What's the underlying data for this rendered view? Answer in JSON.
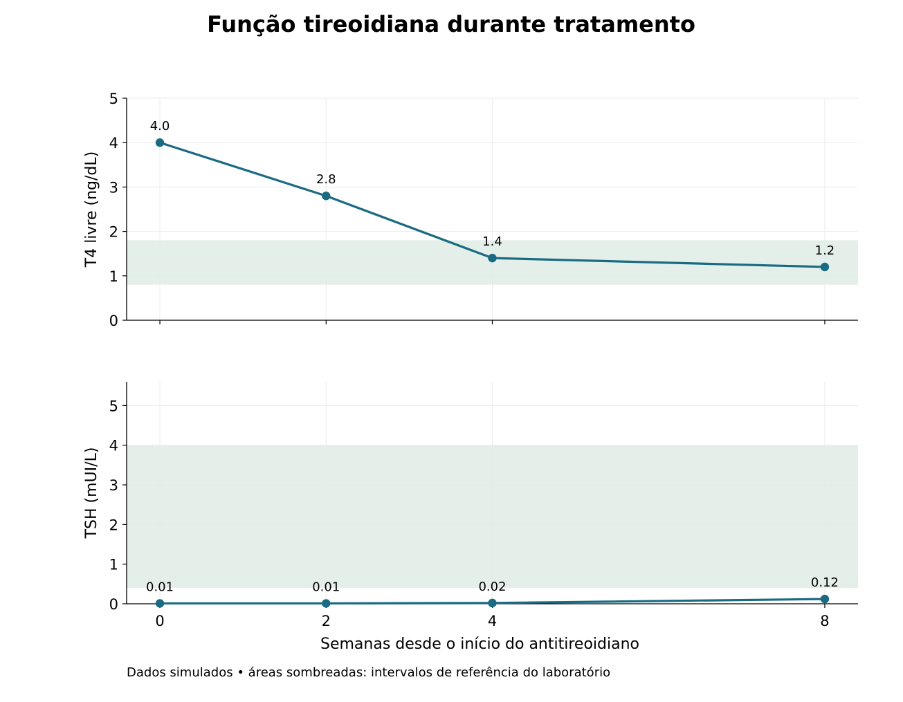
{
  "title": "Função tireoidiana durante tratamento",
  "footnote": "Dados simulados • áreas sombreadas: intervalos de referência do laboratório",
  "colors": {
    "line": "#1a6b82",
    "band": "#dfece6",
    "grid": "#ebebeb",
    "axis": "#000000"
  },
  "chart_data": [
    {
      "type": "line",
      "panel": "top",
      "x": [
        0,
        2,
        4,
        8
      ],
      "values": [
        4.0,
        2.8,
        1.4,
        1.2
      ],
      "data_labels": [
        "4.0",
        "2.8",
        "1.4",
        "1.2"
      ],
      "xlabel": "",
      "ylabel": "T4 livre (ng/dL)",
      "xlim": [
        -0.4,
        8.4
      ],
      "ylim": [
        0,
        5
      ],
      "yticks": [
        0,
        1,
        2,
        3,
        4,
        5
      ],
      "xticks": [
        0,
        2,
        4,
        8
      ],
      "show_xtick_labels": false,
      "reference_range": [
        0.8,
        1.8
      ],
      "grid": true
    },
    {
      "type": "line",
      "panel": "bottom",
      "x": [
        0,
        2,
        4,
        8
      ],
      "values": [
        0.01,
        0.01,
        0.02,
        0.12
      ],
      "data_labels": [
        "0.01",
        "0.01",
        "0.02",
        "0.12"
      ],
      "xlabel": "Semanas desde o início do antitireoidiano",
      "ylabel": "TSH (mUI/L)",
      "xlim": [
        -0.4,
        8.4
      ],
      "ylim": [
        0,
        5.6
      ],
      "yticks": [
        0,
        1,
        2,
        3,
        4,
        5
      ],
      "xticks": [
        0,
        2,
        4,
        8
      ],
      "show_xtick_labels": true,
      "reference_range": [
        0.4,
        4.0
      ],
      "grid": true
    }
  ]
}
